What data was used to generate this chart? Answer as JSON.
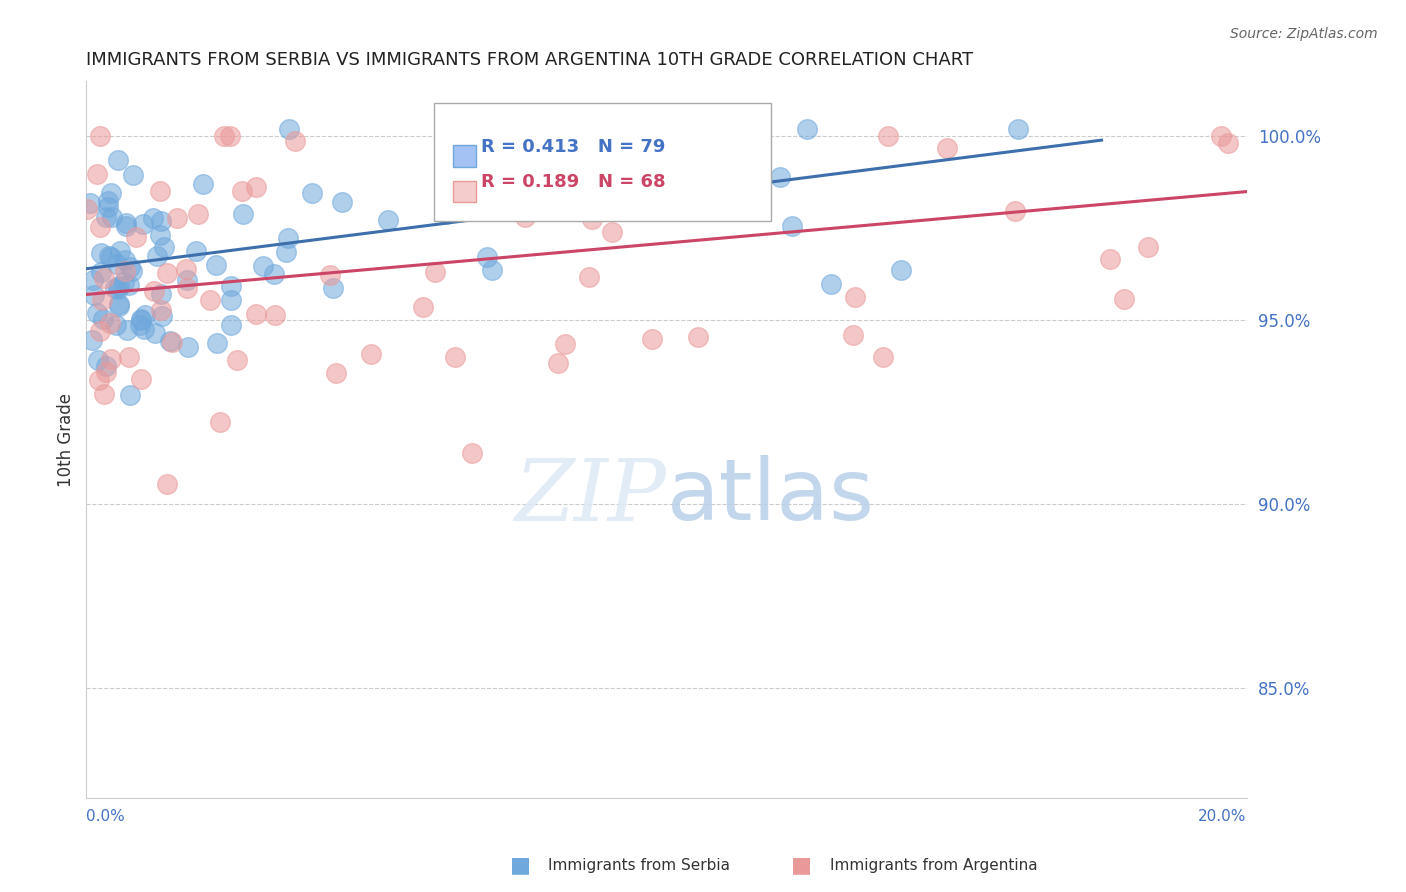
{
  "title": "IMMIGRANTS FROM SERBIA VS IMMIGRANTS FROM ARGENTINA 10TH GRADE CORRELATION CHART",
  "source": "Source: ZipAtlas.com",
  "ylabel": "10th Grade",
  "ytick_values": [
    1.0,
    0.95,
    0.9,
    0.85
  ],
  "xlim": [
    0.0,
    0.2
  ],
  "ylim": [
    0.82,
    1.015
  ],
  "legend_r_serbia": "R = 0.413",
  "legend_n_serbia": "N = 79",
  "legend_r_argentina": "R = 0.189",
  "legend_n_argentina": "N = 68",
  "serbia_color": "#6fa8dc",
  "argentina_color": "#ea9999",
  "serbia_line_color": "#3d6fad",
  "argentina_line_color": "#cc4466",
  "serbia_color_legend": "#a4c2f4",
  "argentina_color_legend": "#f4cccc",
  "grid_color": "#cccccc",
  "ytick_color": "#4472c4"
}
